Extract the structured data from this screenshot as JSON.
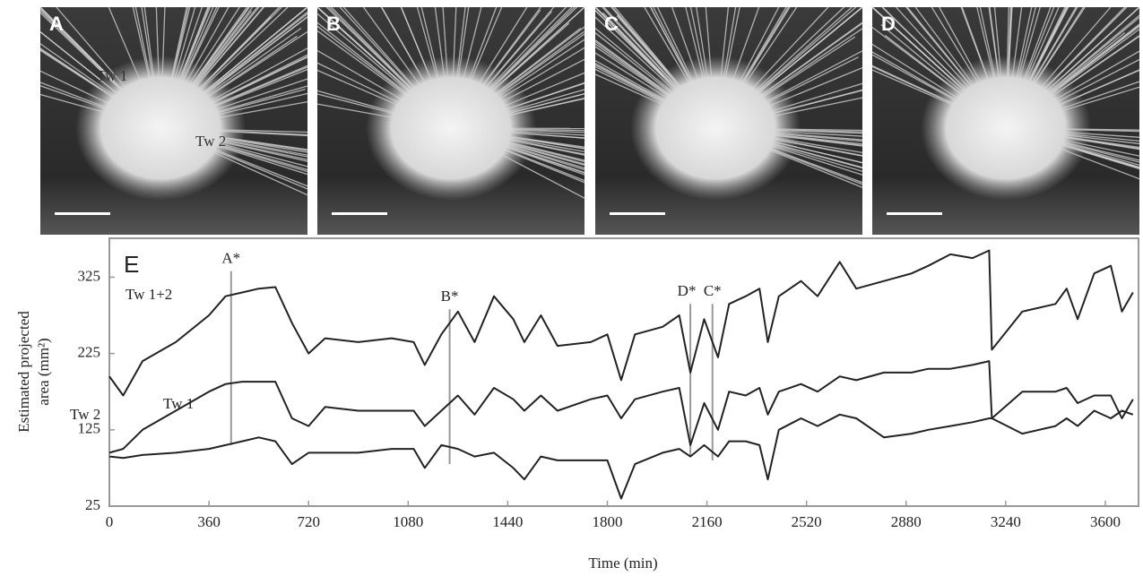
{
  "photos": [
    {
      "label": "A",
      "annotations": [
        "Tw 1",
        "Tw 2"
      ]
    },
    {
      "label": "B"
    },
    {
      "label": "C"
    },
    {
      "label": "D"
    }
  ],
  "chart_data": {
    "type": "line",
    "panel_label": "E",
    "xlabel": "Time (min)",
    "ylabel": [
      "Estimated projected",
      "area (mm²)"
    ],
    "xlim": [
      0,
      3720
    ],
    "ylim": [
      25,
      376
    ],
    "xticks": [
      0,
      360,
      720,
      1080,
      1440,
      1800,
      2160,
      2520,
      2880,
      3240,
      3600
    ],
    "yticks": [
      25,
      125,
      225,
      325
    ],
    "x": [
      0,
      50,
      120,
      240,
      360,
      420,
      480,
      540,
      600,
      660,
      720,
      780,
      900,
      1020,
      1100,
      1140,
      1200,
      1260,
      1320,
      1390,
      1460,
      1500,
      1560,
      1620,
      1740,
      1800,
      1850,
      1900,
      2000,
      2060,
      2100,
      2150,
      2200,
      2240,
      2300,
      2350,
      2380,
      2420,
      2500,
      2560,
      2640,
      2700,
      2800,
      2900,
      2960,
      3040,
      3120,
      3180,
      3190,
      3300,
      3420,
      3460,
      3500,
      3560,
      3620,
      3660,
      3700
    ],
    "series": [
      {
        "name": "Tw 1+2",
        "color": "#222222",
        "values": [
          195,
          170,
          215,
          240,
          275,
          300,
          305,
          310,
          312,
          265,
          225,
          245,
          240,
          245,
          240,
          210,
          250,
          280,
          240,
          300,
          270,
          240,
          275,
          235,
          240,
          250,
          190,
          250,
          260,
          275,
          200,
          270,
          220,
          290,
          300,
          310,
          240,
          300,
          320,
          300,
          345,
          310,
          320,
          330,
          340,
          355,
          350,
          360,
          230,
          280,
          290,
          310,
          270,
          330,
          340,
          280,
          305
        ]
      },
      {
        "name": "Tw 2",
        "color": "#222222",
        "values": [
          95,
          100,
          125,
          150,
          175,
          185,
          188,
          188,
          188,
          140,
          130,
          155,
          150,
          150,
          150,
          130,
          150,
          170,
          145,
          180,
          165,
          150,
          170,
          150,
          165,
          170,
          140,
          165,
          175,
          180,
          105,
          160,
          125,
          175,
          170,
          180,
          145,
          175,
          185,
          175,
          195,
          190,
          200,
          200,
          205,
          205,
          210,
          215,
          140,
          175,
          175,
          180,
          160,
          170,
          170,
          140,
          165
        ]
      },
      {
        "name": "Tw 1",
        "color": "#222222",
        "values": [
          90,
          88,
          92,
          95,
          100,
          105,
          110,
          115,
          110,
          80,
          95,
          95,
          95,
          100,
          100,
          75,
          105,
          100,
          90,
          95,
          75,
          60,
          90,
          85,
          85,
          85,
          35,
          80,
          95,
          100,
          90,
          105,
          90,
          110,
          110,
          105,
          60,
          125,
          140,
          130,
          145,
          140,
          115,
          120,
          125,
          130,
          135,
          140,
          140,
          120,
          130,
          140,
          130,
          150,
          140,
          150,
          145
        ]
      }
    ],
    "markers": [
      {
        "label": "A*",
        "x": 440,
        "ymin": 105,
        "ymax": 333
      },
      {
        "label": "B*",
        "x": 1230,
        "ymin": 80,
        "ymax": 283
      },
      {
        "label": "D*",
        "x": 2100,
        "ymin": 90,
        "ymax": 290
      },
      {
        "label": "C*",
        "x": 2180,
        "ymin": 85,
        "ymax": 290
      }
    ],
    "marker_color": "#999999"
  }
}
